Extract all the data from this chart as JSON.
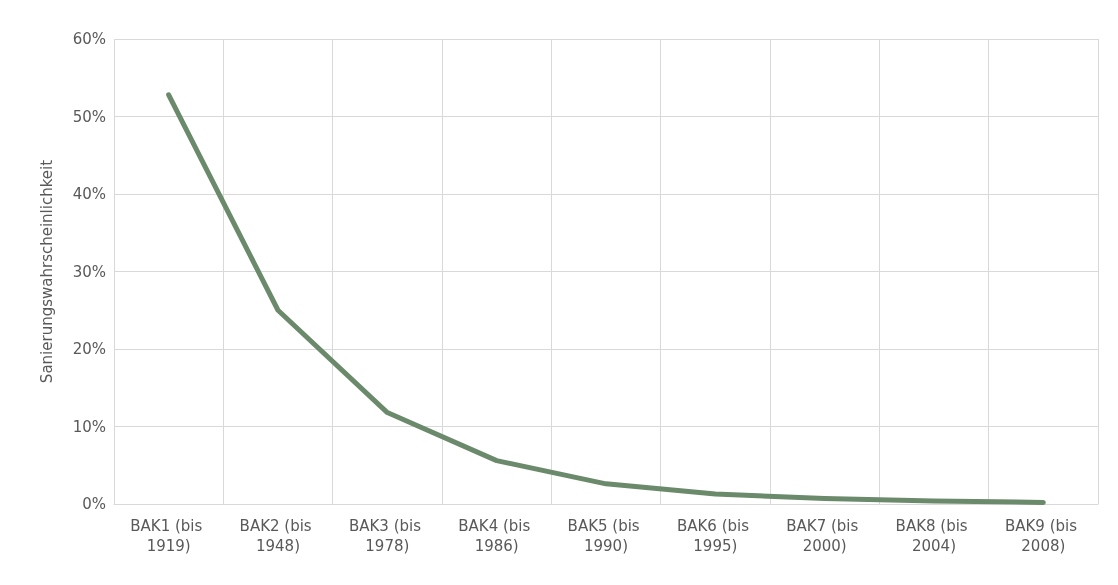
{
  "chart_data": {
    "type": "line",
    "ylabel": "Sanierungswahrscheinlichkeit",
    "categories": [
      "BAK1 (bis 1919)",
      "BAK2 (bis 1948)",
      "BAK3 (bis 1978)",
      "BAK4 (bis 1986)",
      "BAK5 (bis 1990)",
      "BAK6 (bis 1995)",
      "BAK7 (bis 2000)",
      "BAK8 (bis 2004)",
      "BAK9 (bis 2008)"
    ],
    "series": [
      {
        "color": "#6b8a6b",
        "values": [
          52.8,
          25,
          11.8,
          5.6,
          2.6,
          1.3,
          0.7,
          0.4,
          0.2
        ]
      }
    ],
    "ylim": [
      0,
      60
    ],
    "yticks": [
      {
        "value": 0,
        "label": "0%"
      },
      {
        "value": 10,
        "label": "10%"
      },
      {
        "value": 20,
        "label": "20%"
      },
      {
        "value": 30,
        "label": "30%"
      },
      {
        "value": 40,
        "label": "40%"
      },
      {
        "value": 50,
        "label": "50%"
      },
      {
        "value": 60,
        "label": "60%"
      }
    ],
    "grid": true,
    "marker": "none",
    "line_style": "solid"
  }
}
